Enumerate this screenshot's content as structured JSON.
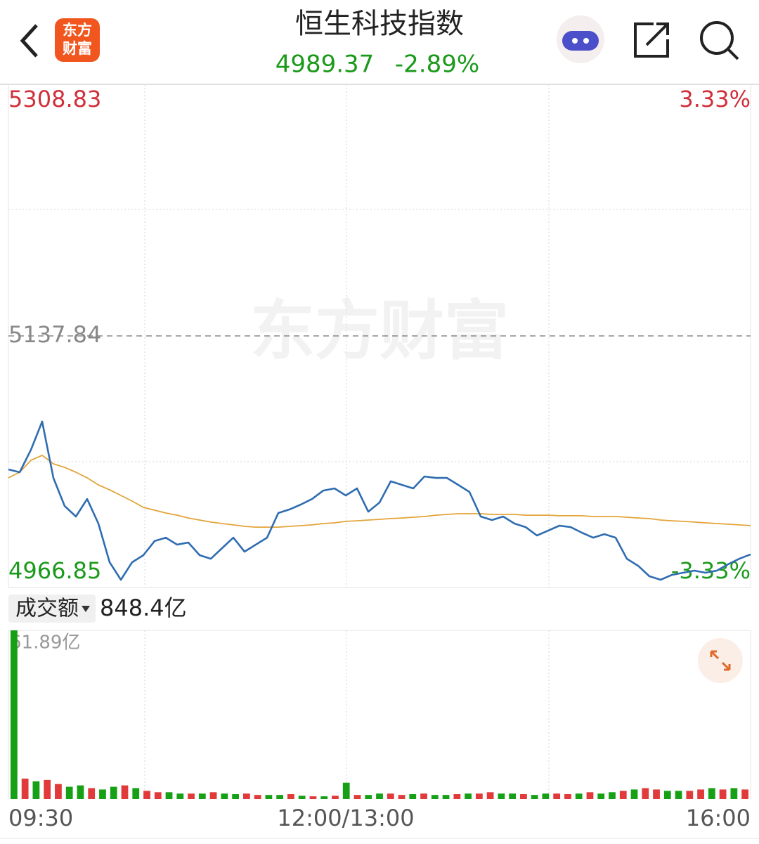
{
  "header": {
    "logo": [
      "东方",
      "财富"
    ],
    "title": "恒生科技指数",
    "price": "4989.37",
    "change": "-2.89%"
  },
  "watermark": "东方财富",
  "chart_data": [
    {
      "type": "line",
      "categories": [
        "09:30",
        null,
        null,
        null,
        null,
        null,
        null,
        null,
        null,
        null,
        null,
        null,
        null,
        null,
        null,
        null,
        null,
        null,
        null,
        null,
        null,
        null,
        null,
        null,
        null,
        null,
        null,
        null,
        null,
        null,
        "12:00/13:00",
        null,
        null,
        null,
        null,
        null,
        null,
        null,
        null,
        null,
        null,
        null,
        null,
        null,
        null,
        null,
        null,
        null,
        null,
        null,
        null,
        null,
        null,
        null,
        null,
        null,
        null,
        null,
        null,
        null,
        null,
        null,
        null,
        null,
        null,
        null,
        "16:00"
      ],
      "series": [
        {
          "color": "#2f6db0",
          "values": [
            5047.1,
            5045.2,
            5060.4,
            5079.6,
            5041.3,
            5022.2,
            5015.1,
            5027.0,
            5010.3,
            4984.0,
            4972.1,
            4984.0,
            4988.8,
            4998.4,
            5000.7,
            4996.0,
            4997.4,
            4988.8,
            4986.4,
            4993.6,
            5000.7,
            4991.2,
            4996.0,
            5000.7,
            5017.5,
            5019.9,
            5023.2,
            5027.0,
            5032.7,
            5034.2,
            5029.4,
            5034.2,
            5018.4,
            5024.6,
            5039.0,
            5036.6,
            5034.2,
            5042.3,
            5041.3,
            5041.3,
            5036.6,
            5031.8,
            5015.1,
            5012.7,
            5015.1,
            5010.3,
            5007.9,
            5002.2,
            5005.5,
            5008.9,
            5007.9,
            5004.1,
            5000.7,
            5003.1,
            5000.7,
            4986.4,
            4981.6,
            4974.5,
            4972.1,
            4975.4,
            4976.9,
            4978.3,
            4976.9,
            4978.3,
            4982.6,
            4986.4,
            4989.37
          ]
        },
        {
          "color": "#e3a43a",
          "values": [
            5041.4,
            5045.2,
            5053.3,
            5056.7,
            5050.9,
            5048.5,
            5045.2,
            5041.4,
            5036.6,
            5033.2,
            5029.4,
            5025.6,
            5021.3,
            5019.4,
            5017.5,
            5016.0,
            5014.1,
            5012.7,
            5011.3,
            5010.3,
            5009.4,
            5008.4,
            5007.9,
            5007.9,
            5007.9,
            5008.4,
            5008.9,
            5009.4,
            5010.3,
            5010.8,
            5011.8,
            5012.2,
            5012.7,
            5013.2,
            5013.7,
            5014.1,
            5014.6,
            5015.1,
            5016.0,
            5016.5,
            5017.0,
            5017.0,
            5017.0,
            5016.5,
            5016.5,
            5016.5,
            5016.0,
            5016.0,
            5016.0,
            5015.6,
            5015.6,
            5015.6,
            5015.1,
            5015.1,
            5015.1,
            5014.6,
            5014.1,
            5013.7,
            5012.7,
            5012.2,
            5011.8,
            5011.3,
            5010.8,
            5010.3,
            5009.9,
            5009.4,
            5008.9
          ]
        }
      ],
      "ylim": [
        4966.85,
        5308.83
      ],
      "yticks": [
        4966.85,
        5137.84,
        5308.83
      ],
      "y2lim": [
        -3.33,
        3.33
      ],
      "y2ticks": [
        {
          "value": -3.33,
          "label": "-3.33%"
        },
        {
          "value": 3.33,
          "label": "3.33%"
        }
      ]
    },
    {
      "type": "bar",
      "selector": "成交额",
      "total": "848.4亿",
      "values": [
        61.89,
        7.5,
        6.5,
        7.0,
        5.5,
        4.5,
        5.0,
        4.0,
        3.5,
        4.5,
        5.0,
        4.0,
        3.0,
        2.5,
        2.5,
        2.0,
        2.0,
        2.0,
        2.5,
        2.0,
        1.8,
        2.0,
        1.5,
        1.5,
        1.5,
        1.8,
        1.2,
        1.0,
        1.0,
        1.2,
        6.0,
        1.5,
        1.5,
        2.0,
        2.0,
        1.5,
        1.8,
        2.0,
        1.5,
        1.5,
        1.8,
        2.0,
        2.0,
        2.5,
        2.0,
        2.0,
        1.8,
        1.5,
        2.0,
        2.0,
        1.8,
        2.0,
        2.5,
        2.0,
        2.5,
        3.0,
        3.5,
        4.0,
        3.5,
        3.0,
        3.0,
        3.0,
        3.5,
        4.0,
        3.5,
        4.0,
        3.5
      ],
      "colors": [
        "#16a016",
        "#e03a3a",
        "#16a016",
        "#e03a3a",
        "#e03a3a",
        "#16a016",
        "#16a016",
        "#e03a3a",
        "#16a016",
        "#16a016",
        "#e03a3a",
        "#16a016",
        "#e03a3a",
        "#e03a3a",
        "#16a016",
        "#16a016",
        "#e03a3a",
        "#16a016",
        "#e03a3a",
        "#16a016",
        "#16a016",
        "#e03a3a",
        "#e03a3a",
        "#16a016",
        "#16a016",
        "#e03a3a",
        "#16a016",
        "#e03a3a",
        "#16a016",
        "#e03a3a",
        "#16a016",
        "#e03a3a",
        "#16a016",
        "#16a016",
        "#e03a3a",
        "#e03a3a",
        "#16a016",
        "#e03a3a",
        "#16a016",
        "#16a016",
        "#e03a3a",
        "#16a016",
        "#e03a3a",
        "#e03a3a",
        "#16a016",
        "#16a016",
        "#e03a3a",
        "#16a016",
        "#16a016",
        "#e03a3a",
        "#e03a3a",
        "#16a016",
        "#e03a3a",
        "#16a016",
        "#16a016",
        "#e03a3a",
        "#16a016",
        "#e03a3a",
        "#e03a3a",
        "#16a016",
        "#16a016",
        "#e03a3a",
        "#e03a3a",
        "#16a016",
        "#e03a3a",
        "#16a016",
        "#e03a3a"
      ],
      "ylim": [
        0,
        61.89
      ],
      "yticks": [
        {
          "value": 61.89,
          "label": "61.89亿"
        }
      ]
    }
  ]
}
